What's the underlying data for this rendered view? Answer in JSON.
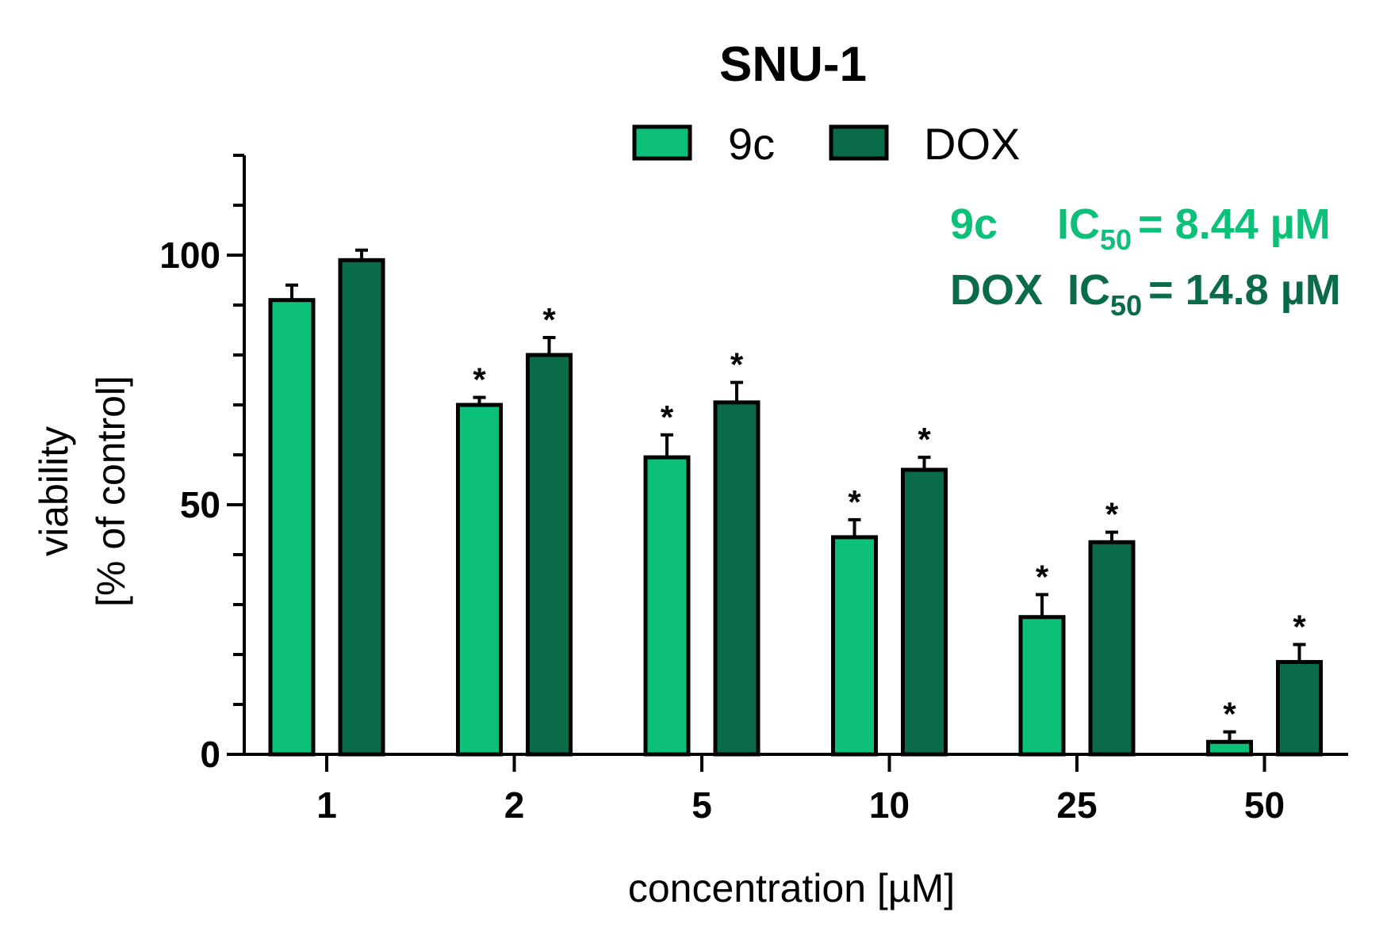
{
  "chart_data": {
    "type": "bar",
    "title": "SNU-1",
    "xlabel": "concentration [µM]",
    "ylabel_line1": "viability",
    "ylabel_line2": "[% of control]",
    "ylim": [
      0,
      120
    ],
    "yticks": [
      0,
      50,
      100
    ],
    "categories": [
      "1",
      "2",
      "5",
      "10",
      "25",
      "50"
    ],
    "series": [
      {
        "name": "9c",
        "color": "#0dc07a",
        "values": [
          91,
          70,
          59.5,
          43.5,
          27.5,
          2.5
        ],
        "errors": [
          3,
          1.5,
          4.5,
          3.5,
          4.5,
          2
        ],
        "significant": [
          false,
          true,
          true,
          true,
          true,
          true
        ]
      },
      {
        "name": "DOX",
        "color": "#0a6b48",
        "values": [
          99,
          80,
          70.5,
          57,
          42.5,
          18.5
        ],
        "errors": [
          2,
          3.5,
          4,
          2.5,
          2,
          3.5
        ],
        "significant": [
          false,
          true,
          true,
          true,
          true,
          true
        ]
      }
    ],
    "significance_marker": "*",
    "ic50_annotations": [
      {
        "name": "9c",
        "label": "IC",
        "subscript": "50",
        "value": "= 8.44 µM",
        "color": "#0dc07a"
      },
      {
        "name": "DOX",
        "label": "IC",
        "subscript": "50",
        "value": "= 14.8 µM",
        "color": "#0a6b48"
      }
    ]
  }
}
